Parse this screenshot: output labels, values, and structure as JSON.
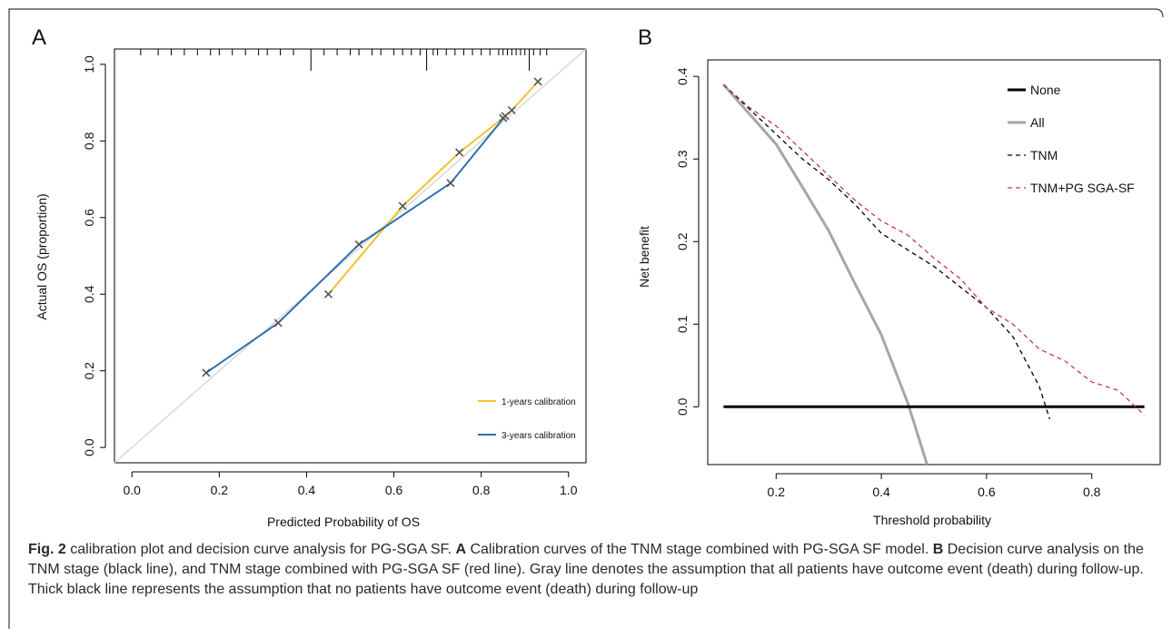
{
  "chart_data": [
    {
      "type": "line",
      "panel_label": "A",
      "xlabel": "Predicted Probability of OS",
      "ylabel": "Actual OS (proportion)",
      "xlim": [
        -0.04,
        1.04
      ],
      "ylim": [
        -0.04,
        1.04
      ],
      "xticks": [
        0.0,
        0.2,
        0.4,
        0.6,
        0.8,
        1.0
      ],
      "yticks": [
        0.0,
        0.2,
        0.4,
        0.6,
        0.8,
        1.0
      ],
      "xtick_labels": [
        "0.0",
        "0.2",
        "0.4",
        "0.6",
        "0.8",
        "1.0"
      ],
      "ytick_labels": [
        "0.0",
        "0.2",
        "0.4",
        "0.6",
        "0.8",
        "1.0"
      ],
      "reference_line": {
        "x": [
          -0.04,
          1.04
        ],
        "y": [
          -0.04,
          1.04
        ],
        "color": "#d9d9d9"
      },
      "series": [
        {
          "name": "1-years calibration",
          "color": "#f2c230",
          "x": [
            0.45,
            0.62,
            0.75,
            0.85,
            0.87,
            0.93
          ],
          "y": [
            0.4,
            0.63,
            0.77,
            0.86,
            0.88,
            0.955
          ]
        },
        {
          "name": "3-years calibration",
          "color": "#2f6fb0",
          "x": [
            0.17,
            0.335,
            0.52,
            0.73,
            0.855
          ],
          "y": [
            0.195,
            0.325,
            0.53,
            0.69,
            0.865
          ]
        }
      ],
      "rug": [
        0.02,
        0.06,
        0.09,
        0.12,
        0.15,
        0.18,
        0.2,
        0.23,
        0.26,
        0.29,
        0.31,
        0.34,
        0.37,
        0.41,
        0.44,
        0.47,
        0.5,
        0.52,
        0.55,
        0.57,
        0.6,
        0.62,
        0.64,
        0.66,
        0.675,
        0.69,
        0.7,
        0.72,
        0.74,
        0.76,
        0.78,
        0.8,
        0.82,
        0.84,
        0.85,
        0.86,
        0.87,
        0.88,
        0.89,
        0.9,
        0.91,
        0.92,
        0.935,
        0.95
      ],
      "rug_tall": [
        0.41,
        0.675,
        0.91
      ],
      "legend": "bottom-right",
      "grid": false
    },
    {
      "type": "line",
      "panel_label": "B",
      "xlabel": "Threshold probability",
      "ylabel": "Net benefit",
      "xlim": [
        0.07,
        0.93
      ],
      "ylim": [
        -0.07,
        0.42
      ],
      "xticks": [
        0.2,
        0.4,
        0.6,
        0.8
      ],
      "yticks": [
        0.0,
        0.1,
        0.2,
        0.3,
        0.4
      ],
      "xtick_labels": [
        "0.2",
        "0.4",
        "0.6",
        "0.8"
      ],
      "ytick_labels": [
        "0.0",
        "0.1",
        "0.2",
        "0.3",
        "0.4"
      ],
      "series": [
        {
          "name": "None",
          "color": "#000000",
          "style": "solid-thick",
          "x": [
            0.1,
            0.9
          ],
          "y": [
            0.0,
            0.0
          ]
        },
        {
          "name": "All",
          "color": "#a6a6a6",
          "style": "solid-thick",
          "x": [
            0.1,
            0.15,
            0.2,
            0.25,
            0.3,
            0.35,
            0.4,
            0.45,
            0.487
          ],
          "y": [
            0.39,
            0.354,
            0.318,
            0.266,
            0.213,
            0.149,
            0.087,
            0.005,
            -0.07
          ]
        },
        {
          "name": "TNM",
          "color": "#000000",
          "style": "dashed",
          "x": [
            0.1,
            0.15,
            0.2,
            0.25,
            0.3,
            0.35,
            0.4,
            0.45,
            0.5,
            0.55,
            0.6,
            0.65,
            0.7,
            0.72
          ],
          "y": [
            0.39,
            0.36,
            0.33,
            0.3,
            0.275,
            0.245,
            0.21,
            0.19,
            0.17,
            0.145,
            0.12,
            0.085,
            0.025,
            -0.015
          ]
        },
        {
          "name": "TNM+PG SGA-SF",
          "color": "#cc3366",
          "style": "dashed",
          "x": [
            0.1,
            0.15,
            0.2,
            0.25,
            0.3,
            0.35,
            0.4,
            0.45,
            0.5,
            0.55,
            0.6,
            0.65,
            0.7,
            0.75,
            0.8,
            0.85,
            0.9
          ],
          "y": [
            0.39,
            0.362,
            0.34,
            0.31,
            0.28,
            0.25,
            0.225,
            0.208,
            0.18,
            0.155,
            0.12,
            0.1,
            0.07,
            0.055,
            0.03,
            0.02,
            -0.01
          ]
        }
      ],
      "legend": "top-right",
      "grid": false
    }
  ],
  "caption": {
    "fig_label": "Fig. 2",
    "title": "calibration plot and decision curve analysis for PG-SGA SF.",
    "part_a_label": "A",
    "part_a_text": "Calibration curves of the TNM stage combined with PG-SGA SF model.",
    "part_b_label": "B",
    "part_b_text": "Decision curve analysis on the TNM stage (black line), and TNM stage combined with PG-SGA SF (red line). Gray line denotes the assumption that all patients have outcome event (death) during follow-up. Thick black line represents the assumption that no patients have outcome event (death) during follow-up"
  }
}
